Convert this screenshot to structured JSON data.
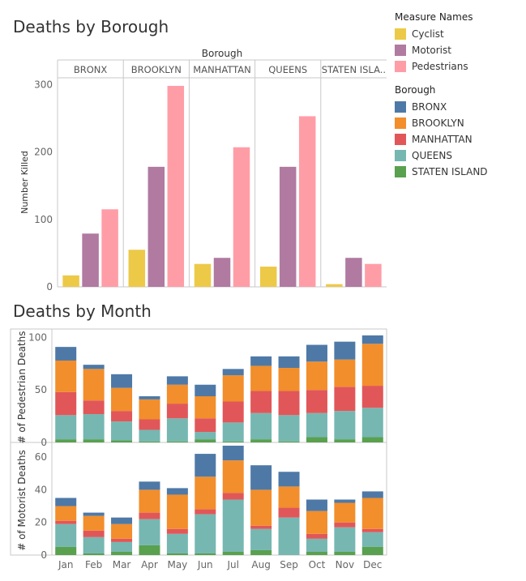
{
  "titles": {
    "borough_chart": "Deaths by Borough",
    "month_chart": "Deaths by Month"
  },
  "legend": {
    "measure": {
      "title": "Measure Names",
      "items": [
        {
          "label": "Cyclist",
          "color": "#EDC948"
        },
        {
          "label": "Motorist",
          "color": "#B07AA1"
        },
        {
          "label": "Pedestrians",
          "color": "#FF9DA7"
        }
      ]
    },
    "borough": {
      "title": "Borough",
      "items": [
        {
          "label": "BRONX",
          "color": "#4E79A7"
        },
        {
          "label": "BROOKLYN",
          "color": "#F28E2B"
        },
        {
          "label": "MANHATTAN",
          "color": "#E15759"
        },
        {
          "label": "QUEENS",
          "color": "#76B7B2"
        },
        {
          "label": "STATEN ISLAND",
          "color": "#59A14F"
        }
      ]
    }
  },
  "chart_data": [
    {
      "type": "bar",
      "title": "Deaths by Borough",
      "header_label": "Borough",
      "ylabel": "Number Killed",
      "ylim": [
        0,
        310
      ],
      "yticks": [
        0,
        100,
        200,
        300
      ],
      "groups": [
        "BRONX",
        "BROOKLYN",
        "MANHATTAN",
        "QUEENS",
        "STATEN ISLA.."
      ],
      "series": [
        {
          "name": "Cyclist",
          "color": "#EDC948",
          "values": [
            17,
            55,
            34,
            30,
            4
          ]
        },
        {
          "name": "Motorist",
          "color": "#B07AA1",
          "values": [
            79,
            178,
            43,
            178,
            43
          ]
        },
        {
          "name": "Pedestrians",
          "color": "#FF9DA7",
          "values": [
            115,
            298,
            207,
            253,
            34
          ]
        }
      ]
    },
    {
      "type": "bar",
      "stacked": true,
      "title": "Deaths by Month",
      "categories": [
        "Jan",
        "Feb",
        "Mar",
        "Apr",
        "May",
        "Jun",
        "Jul",
        "Aug",
        "Sep",
        "Oct",
        "Nov",
        "Dec"
      ],
      "panels": [
        {
          "ylabel": "# of Pedestrian Deaths",
          "ylim": [
            0,
            105
          ],
          "yticks": [
            0,
            50,
            100
          ],
          "series": [
            {
              "name": "STATEN ISLAND",
              "color": "#59A14F",
              "values": [
                3,
                3,
                2,
                1,
                1,
                3,
                1,
                3,
                1,
                5,
                3,
                5
              ]
            },
            {
              "name": "QUEENS",
              "color": "#76B7B2",
              "values": [
                23,
                24,
                18,
                11,
                22,
                7,
                18,
                25,
                25,
                23,
                27,
                28
              ]
            },
            {
              "name": "MANHATTAN",
              "color": "#E15759",
              "values": [
                22,
                13,
                10,
                10,
                14,
                13,
                20,
                21,
                23,
                22,
                23,
                21
              ]
            },
            {
              "name": "BROOKLYN",
              "color": "#F28E2B",
              "values": [
                30,
                30,
                22,
                19,
                18,
                21,
                25,
                24,
                22,
                27,
                26,
                40
              ]
            },
            {
              "name": "BRONX",
              "color": "#4E79A7",
              "values": [
                13,
                4,
                13,
                3,
                8,
                11,
                6,
                9,
                11,
                16,
                17,
                8
              ]
            }
          ]
        },
        {
          "ylabel": "# of Motorist Deaths",
          "ylim": [
            0,
            67
          ],
          "yticks": [
            0,
            20,
            40,
            60
          ],
          "series": [
            {
              "name": "STATEN ISLAND",
              "color": "#59A14F",
              "values": [
                5,
                1,
                2,
                6,
                1,
                1,
                2,
                3,
                0,
                2,
                2,
                5
              ]
            },
            {
              "name": "QUEENS",
              "color": "#76B7B2",
              "values": [
                14,
                10,
                6,
                16,
                12,
                24,
                32,
                13,
                23,
                8,
                15,
                9
              ]
            },
            {
              "name": "MANHATTAN",
              "color": "#E15759",
              "values": [
                2,
                4,
                2,
                4,
                3,
                3,
                4,
                2,
                6,
                3,
                3,
                2
              ]
            },
            {
              "name": "BROOKLYN",
              "color": "#F28E2B",
              "values": [
                9,
                9,
                9,
                14,
                21,
                20,
                20,
                22,
                13,
                14,
                12,
                19
              ]
            },
            {
              "name": "BRONX",
              "color": "#4E79A7",
              "values": [
                5,
                2,
                4,
                5,
                4,
                14,
                9,
                15,
                9,
                7,
                2,
                4
              ]
            }
          ]
        }
      ]
    }
  ]
}
